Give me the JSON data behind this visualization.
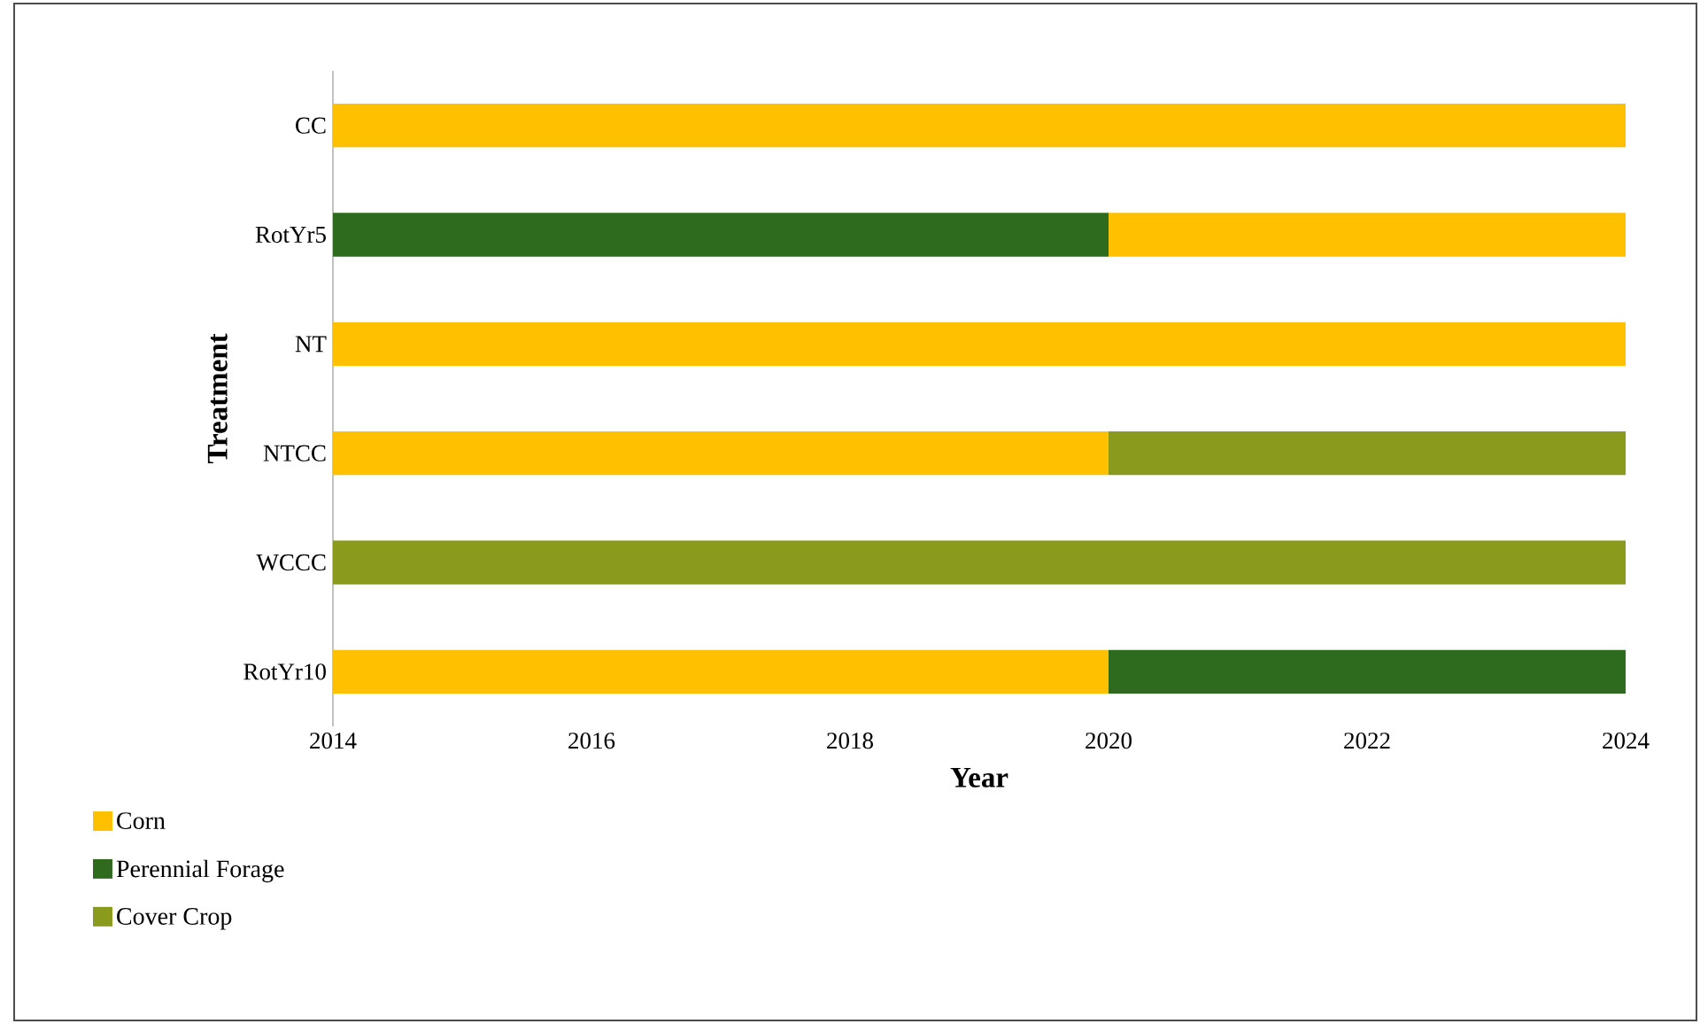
{
  "chart_data": {
    "type": "bar",
    "orientation": "horizontal",
    "xlabel": "Year",
    "ylabel": "Treatment",
    "categories": [
      "CC",
      "RotYr5",
      "NT",
      "NTCC",
      "WCCC",
      "RotYr10"
    ],
    "xlim": [
      2014,
      2024
    ],
    "xticks": [
      2014,
      2016,
      2018,
      2020,
      2022,
      2024
    ],
    "legend": "bottom left",
    "series": [
      {
        "name": "Corn",
        "color": "#ffc000",
        "values": [
          10,
          4,
          10,
          6,
          null,
          6
        ],
        "base": [
          2014,
          2020,
          2014,
          2014,
          null,
          2014
        ]
      },
      {
        "name": "Perennial Forage",
        "color": "#2e6b1f",
        "values": [
          null,
          6,
          null,
          null,
          null,
          4
        ],
        "base": [
          null,
          2014,
          null,
          null,
          null,
          2020
        ]
      },
      {
        "name": "Cover Crop",
        "color": "#8a9a1c",
        "values": [
          null,
          null,
          null,
          4,
          10,
          null
        ],
        "base": [
          null,
          null,
          null,
          2020,
          2014,
          null
        ]
      }
    ]
  }
}
